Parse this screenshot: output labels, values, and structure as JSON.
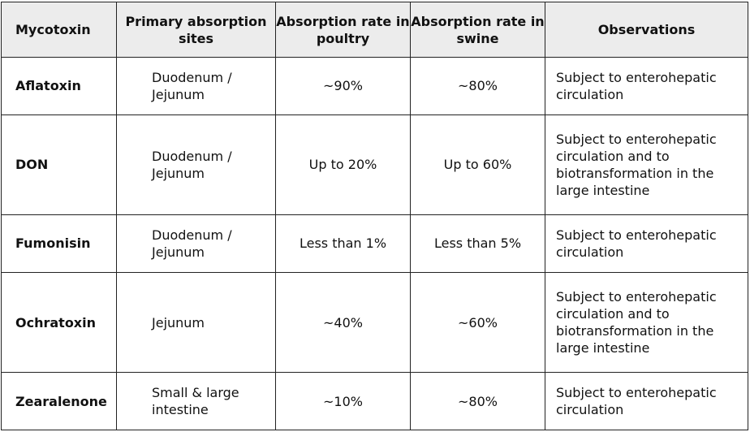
{
  "headers": {
    "mycotoxin": "Mycotoxin",
    "sites": "Primary absorption sites",
    "poultry": "Absorption rate in poultry",
    "swine": "Absorption rate in swine",
    "observations": "Observations"
  },
  "rows": [
    {
      "mycotoxin": "Aflatoxin",
      "sites": "Duodenum / Jejunum",
      "poultry": "~90%",
      "swine": "~80%",
      "observations": "Subject to enterohepatic circulation"
    },
    {
      "mycotoxin": "DON",
      "sites": "Duodenum / Jejunum",
      "poultry": "Up to 20%",
      "swine": "Up to 60%",
      "observations": "Subject to enterohepatic circulation and to biotransformation in the large intestine"
    },
    {
      "mycotoxin": "Fumonisin",
      "sites": "Duodenum / Jejunum",
      "poultry": "Less than 1%",
      "swine": "Less than 5%",
      "observations": "Subject to enterohepatic circulation"
    },
    {
      "mycotoxin": "Ochratoxin",
      "sites": "Jejunum",
      "poultry": "~40%",
      "swine": "~60%",
      "observations": "Subject to enterohepatic circulation and to biotransformation in the large intestine"
    },
    {
      "mycotoxin": "Zearalenone",
      "sites": "Small & large intestine",
      "poultry": "~10%",
      "swine": "~80%",
      "observations": "Subject to enterohepatic circulation"
    }
  ]
}
